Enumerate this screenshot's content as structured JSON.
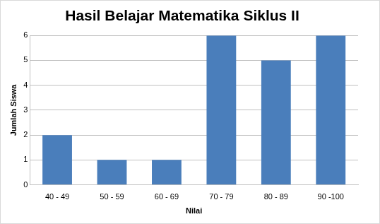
{
  "chart_data": {
    "type": "bar",
    "title": "Hasil Belajar Matematika Siklus II",
    "categories": [
      "40 - 49",
      "50 - 59",
      "60 - 69",
      "70 - 79",
      "80 - 89",
      "90 -100"
    ],
    "values": [
      2,
      1,
      1,
      6,
      5,
      6
    ],
    "color": "#4a7ebb",
    "x_label": "Nilai",
    "y_label": "Jumlah Siswa",
    "ylim": [
      0,
      6
    ],
    "yticks": [
      0,
      1,
      2,
      3,
      4,
      5,
      6
    ],
    "grid": true
  }
}
